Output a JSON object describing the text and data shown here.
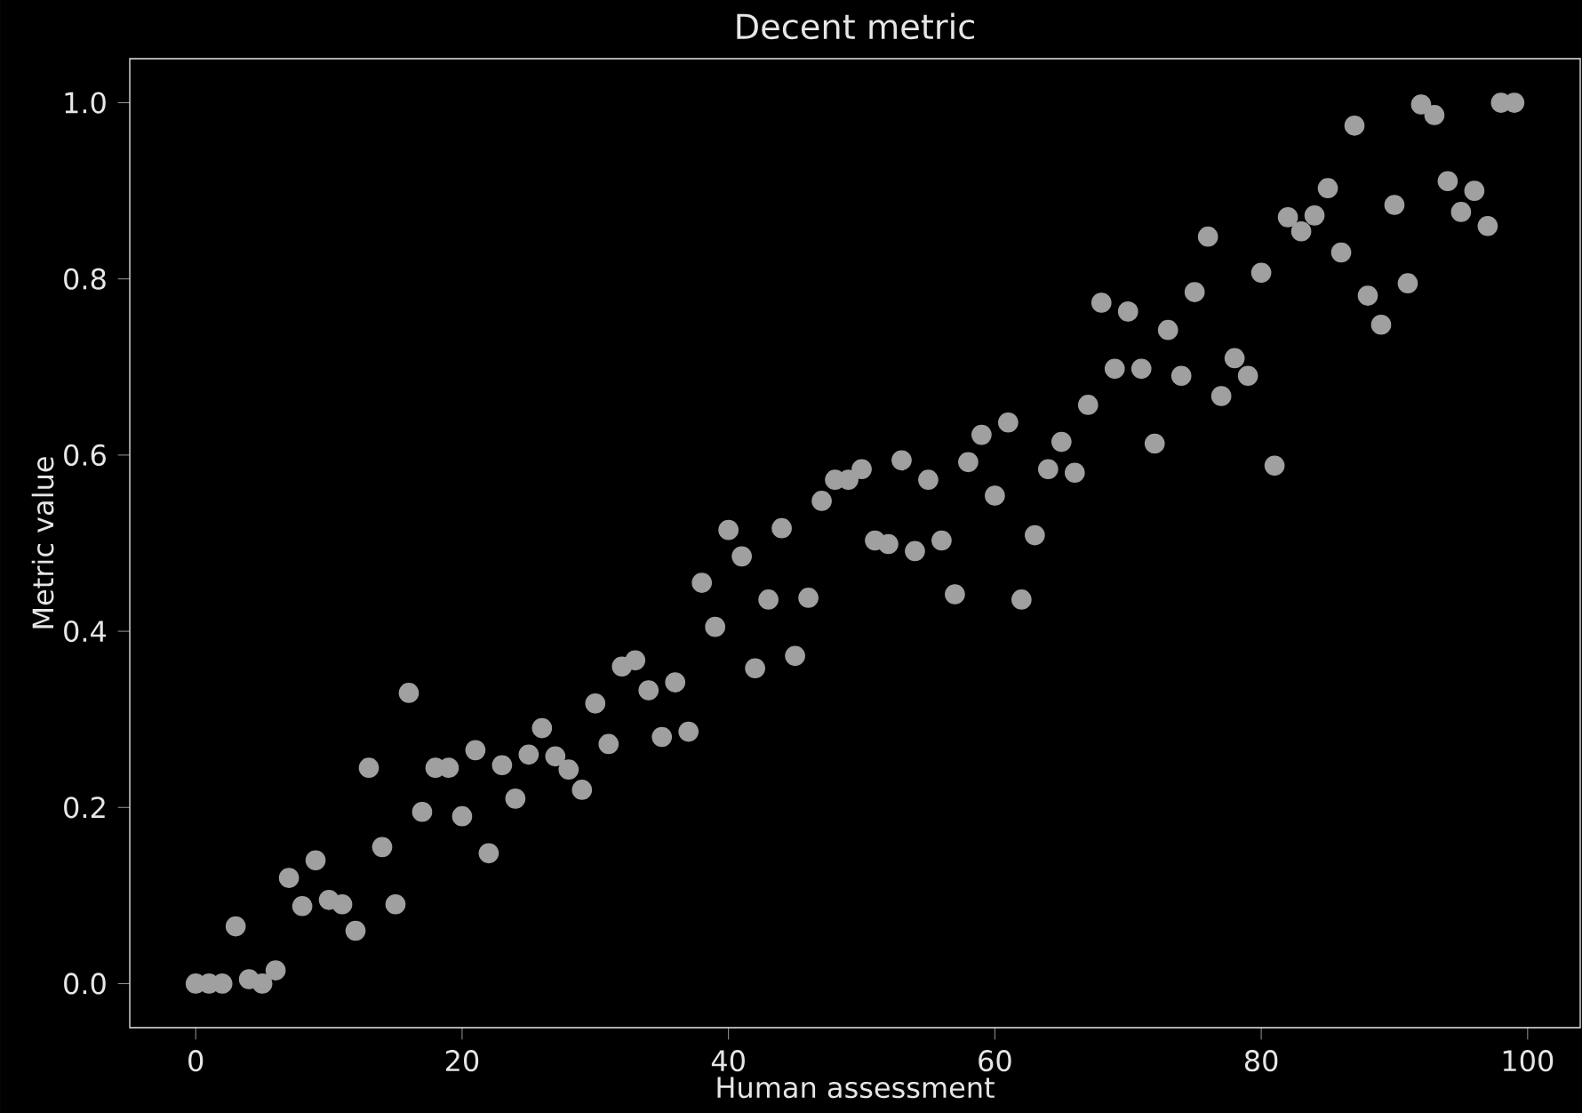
{
  "chart_data": {
    "type": "scatter",
    "title": "Decent metric",
    "xlabel": "Human assessment",
    "ylabel": "Metric value",
    "x": [
      0,
      1,
      2,
      3,
      4,
      5,
      6,
      7,
      8,
      9,
      10,
      11,
      12,
      13,
      14,
      15,
      16,
      17,
      18,
      19,
      20,
      21,
      22,
      23,
      24,
      25,
      26,
      27,
      28,
      29,
      30,
      31,
      32,
      33,
      34,
      35,
      36,
      37,
      38,
      39,
      40,
      41,
      42,
      43,
      44,
      45,
      46,
      47,
      48,
      49,
      50,
      51,
      52,
      53,
      54,
      55,
      56,
      57,
      58,
      59,
      60,
      61,
      62,
      63,
      64,
      65,
      66,
      67,
      68,
      69,
      70,
      71,
      72,
      73,
      74,
      75,
      76,
      77,
      78,
      79,
      80,
      81,
      82,
      83,
      84,
      85,
      86,
      87,
      88,
      89,
      90,
      91,
      92,
      93,
      94,
      95,
      96,
      97,
      98,
      99
    ],
    "values": [
      0.0,
      0.0,
      0.0,
      0.065,
      0.005,
      0.0,
      0.015,
      0.12,
      0.088,
      0.14,
      0.095,
      0.09,
      0.06,
      0.245,
      0.155,
      0.09,
      0.33,
      0.195,
      0.245,
      0.245,
      0.19,
      0.265,
      0.148,
      0.248,
      0.21,
      0.26,
      0.29,
      0.258,
      0.243,
      0.22,
      0.318,
      0.272,
      0.36,
      0.367,
      0.333,
      0.28,
      0.342,
      0.286,
      0.455,
      0.405,
      0.515,
      0.485,
      0.358,
      0.436,
      0.517,
      0.372,
      0.438,
      0.548,
      0.572,
      0.572,
      0.584,
      0.503,
      0.499,
      0.594,
      0.491,
      0.572,
      0.503,
      0.442,
      0.592,
      0.623,
      0.554,
      0.637,
      0.436,
      0.509,
      0.584,
      0.615,
      0.58,
      0.657,
      0.773,
      0.698,
      0.763,
      0.698,
      0.613,
      0.742,
      0.69,
      0.785,
      0.848,
      0.667,
      0.71,
      0.69,
      0.807,
      0.588,
      0.87,
      0.854,
      0.872,
      0.903,
      0.83,
      0.974,
      0.781,
      0.748,
      0.884,
      0.795,
      0.998,
      0.986,
      0.911,
      0.876,
      0.9,
      0.86,
      1.0,
      1.0
    ],
    "color": "#a0a0a0",
    "marker": "circle",
    "xlim": [
      -4.95,
      103.95
    ],
    "ylim": [
      -0.05,
      1.05
    ],
    "xticks": [
      0,
      20,
      40,
      60,
      80,
      100
    ],
    "yticks": [
      {
        "value": 0,
        "label": "0.0"
      },
      {
        "value": 0.2,
        "label": "0.2"
      },
      {
        "value": 0.4,
        "label": "0.4"
      },
      {
        "value": 0.6,
        "label": "0.6"
      },
      {
        "value": 0.8,
        "label": "0.8"
      },
      {
        "value": 1.0,
        "label": "1.0"
      }
    ]
  }
}
